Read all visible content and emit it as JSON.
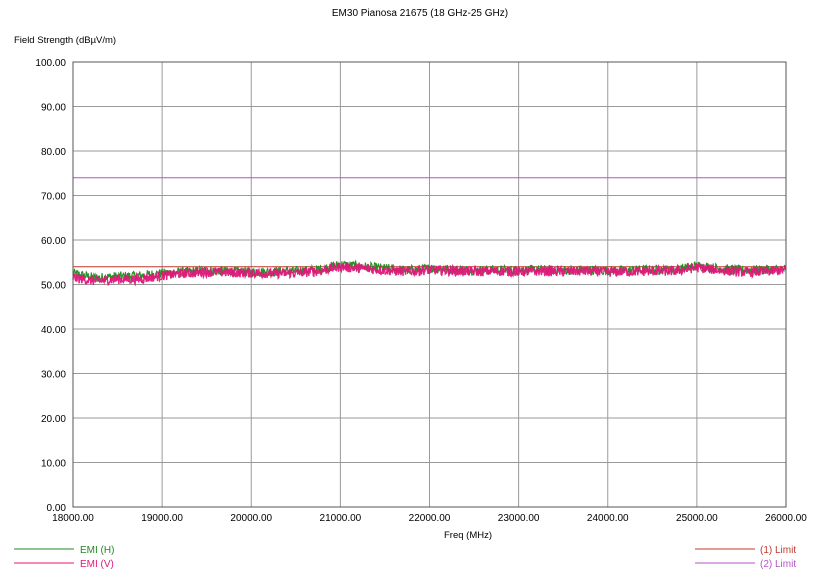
{
  "chart_data": {
    "type": "line",
    "title": "EM30 Pianosa 21675  (18 GHz-25 GHz)",
    "ylabel": "Field Strength (dBµV/m)",
    "xlabel": "Freq (MHz)",
    "xlim": [
      18000,
      26000
    ],
    "ylim": [
      0,
      100
    ],
    "x_ticks": [
      "18000.00",
      "19000.00",
      "20000.00",
      "21000.00",
      "22000.00",
      "23000.00",
      "24000.00",
      "25000.00",
      "26000.00"
    ],
    "y_ticks": [
      "0.00",
      "10.00",
      "20.00",
      "30.00",
      "40.00",
      "50.00",
      "60.00",
      "70.00",
      "80.00",
      "90.00",
      "100.00"
    ],
    "grid": true,
    "x": [
      18000,
      18250,
      18500,
      18750,
      19000,
      19250,
      19500,
      19750,
      20000,
      20250,
      20500,
      20750,
      21000,
      21250,
      21500,
      21750,
      22000,
      22250,
      22500,
      22750,
      23000,
      23250,
      23500,
      23750,
      24000,
      24250,
      24500,
      24750,
      25000,
      25250,
      25500,
      25750,
      26000
    ],
    "series": [
      {
        "name": "EMI (H)",
        "color": "#1f8a1f",
        "values": [
          52.5,
          51.5,
          51.8,
          52.0,
          52.5,
          52.8,
          53.2,
          53.0,
          52.8,
          52.9,
          53.0,
          53.3,
          54.5,
          54.0,
          53.6,
          53.2,
          53.6,
          53.4,
          53.2,
          53.3,
          53.2,
          53.3,
          53.2,
          53.3,
          53.1,
          53.2,
          53.3,
          53.3,
          54.2,
          53.6,
          53.2,
          53.3,
          53.5
        ]
      },
      {
        "name": "EMI (V)",
        "color": "#e0177a",
        "values": [
          51.5,
          50.8,
          51.2,
          51.2,
          52.0,
          52.5,
          52.8,
          52.7,
          52.6,
          52.5,
          52.6,
          53.0,
          54.0,
          53.6,
          53.2,
          52.9,
          53.3,
          53.1,
          52.9,
          53.0,
          52.9,
          53.0,
          52.9,
          53.0,
          52.8,
          52.9,
          53.0,
          53.0,
          53.8,
          53.2,
          52.8,
          52.9,
          53.2
        ]
      }
    ],
    "limits": [
      {
        "name": "(1) Limit",
        "value": 54.0,
        "color": "#c0392b"
      },
      {
        "name": "(2) Limit",
        "value": 74.0,
        "color": "#b455c8"
      }
    ],
    "legend": {
      "left": [
        "EMI (H)",
        "EMI (V)"
      ],
      "right": [
        "(1) Limit",
        "(2) Limit"
      ]
    }
  }
}
